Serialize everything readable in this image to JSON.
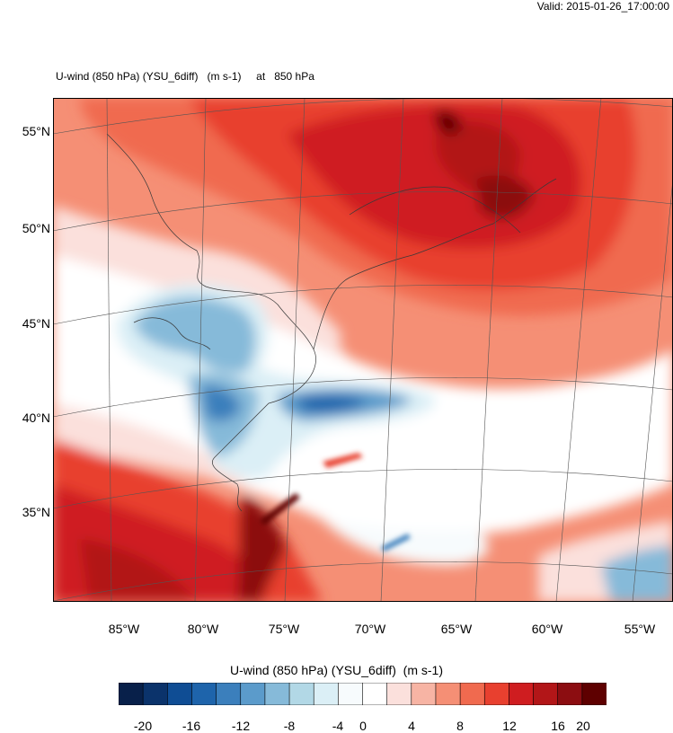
{
  "header": {
    "valid_time": "Valid: 2015-01-26_17:00:00"
  },
  "plot": {
    "title": "U-wind (850 hPa) (YSU_6diff)   (m s-1)     at   850 hPa",
    "lat_labels": [
      "55°N",
      "50°N",
      "45°N",
      "40°N",
      "35°N"
    ],
    "lon_labels": [
      "85°W",
      "80°W",
      "75°W",
      "70°W",
      "65°W",
      "60°W",
      "55°W"
    ]
  },
  "colorbar": {
    "title": "U-wind (850 hPa) (YSU_6diff)  (m s-1)",
    "tick_labels": [
      "-20",
      "-16",
      "-12",
      "-8",
      "-4",
      "0",
      "4",
      "8",
      "12",
      "16",
      "20"
    ],
    "colors": [
      "#08204a",
      "#0b336b",
      "#0f4d94",
      "#1e64ab",
      "#3b7fbc",
      "#5b9bcb",
      "#86bad9",
      "#b2d8e6",
      "#dbeff6",
      "#f7fbfd",
      "#ffffff",
      "#fbe0dc",
      "#f7b4a4",
      "#f58f75",
      "#f06a4f",
      "#e8402f",
      "#cf1d20",
      "#b21618",
      "#8c0d11",
      "#5e0000"
    ]
  },
  "map": {
    "colors": {
      "frame": "#000000",
      "coast": "#3a3a3a",
      "grid": "#555555"
    }
  }
}
